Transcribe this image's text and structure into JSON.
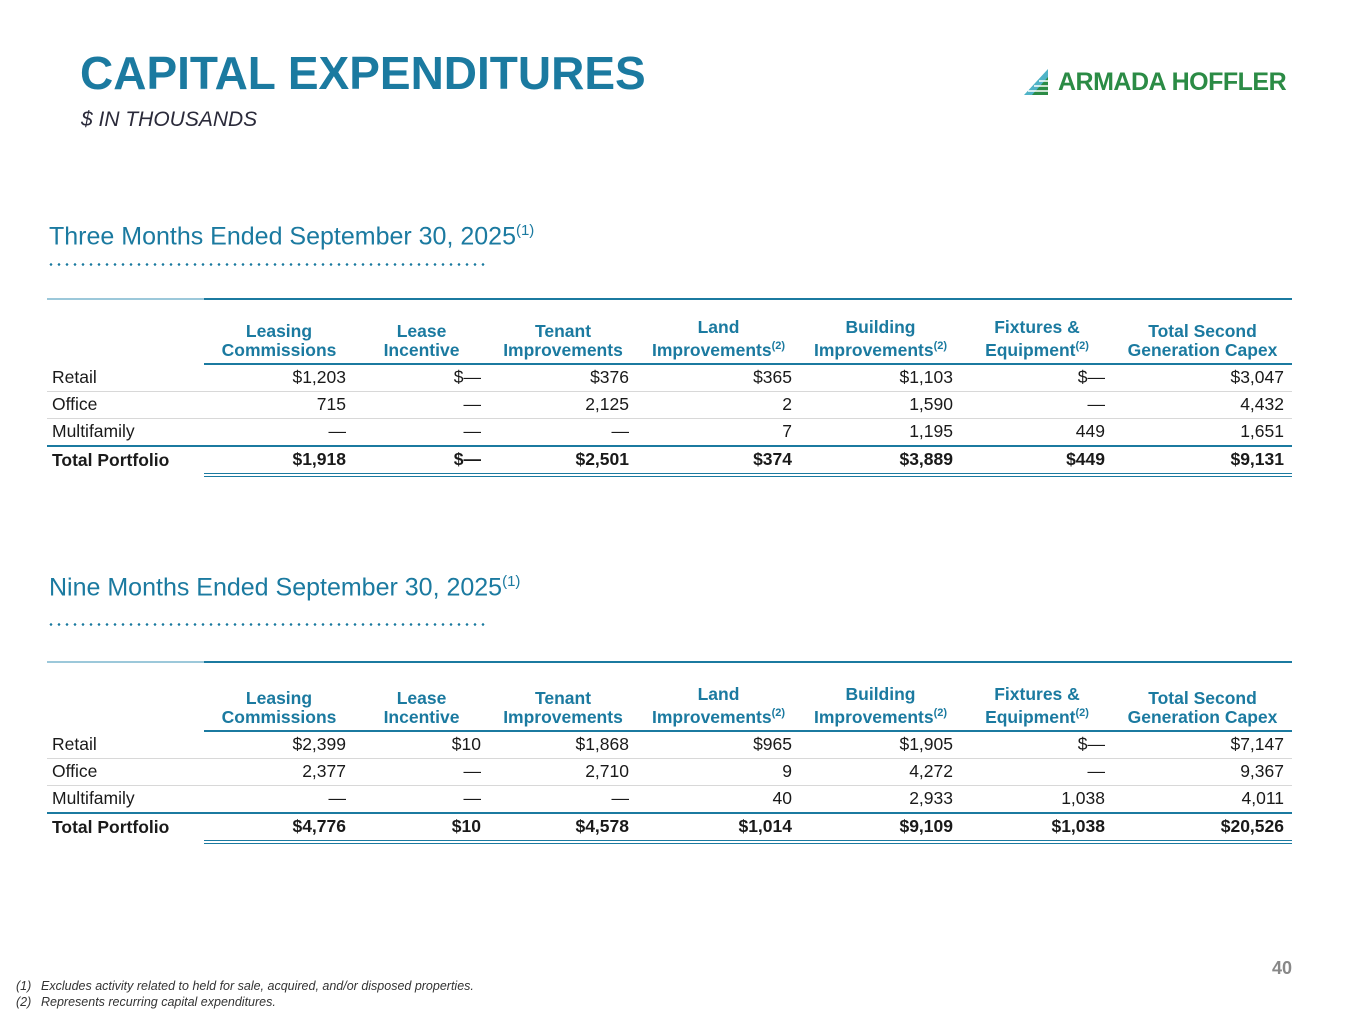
{
  "header": {
    "title": "CAPITAL EXPENDITURES",
    "subtitle": "$ IN THOUSANDS",
    "logo_text": "ARMADA HOFFLER"
  },
  "columns": [
    {
      "line1": "Leasing",
      "line2": "Commissions",
      "sup": ""
    },
    {
      "line1": "Lease",
      "line2": "Incentive",
      "sup": ""
    },
    {
      "line1": "Tenant",
      "line2": "Improvements",
      "sup": ""
    },
    {
      "line1": "Land",
      "line2": "Improvements",
      "sup": "(2)"
    },
    {
      "line1": "Building",
      "line2": "Improvements",
      "sup": "(2)"
    },
    {
      "line1": "Fixtures &",
      "line2": "Equipment",
      "sup": "(2)"
    },
    {
      "line1": "Total Second",
      "line2": "Generation Capex",
      "sup": ""
    }
  ],
  "sections": [
    {
      "title": "Three Months Ended September 30, 2025",
      "title_sup": "(1)",
      "rows": [
        {
          "label": "Retail",
          "values": [
            "$1,203",
            "$—",
            "$376",
            "$365",
            "$1,103",
            "$—",
            "$3,047"
          ]
        },
        {
          "label": "Office",
          "values": [
            "715",
            "—",
            "2,125",
            "2",
            "1,590",
            "—",
            "4,432"
          ]
        },
        {
          "label": "Multifamily",
          "values": [
            "—",
            "—",
            "—",
            "7",
            "1,195",
            "449",
            "1,651"
          ]
        }
      ],
      "total": {
        "label": "Total Portfolio",
        "values": [
          "$1,918",
          "$—",
          "$2,501",
          "$374",
          "$3,889",
          "$449",
          "$9,131"
        ]
      }
    },
    {
      "title": "Nine Months Ended September 30, 2025",
      "title_sup": "(1)",
      "rows": [
        {
          "label": "Retail",
          "values": [
            "$2,399",
            "$10",
            "$1,868",
            "$965",
            "$1,905",
            "$—",
            "$7,147"
          ]
        },
        {
          "label": "Office",
          "values": [
            "2,377",
            "—",
            "2,710",
            "9",
            "4,272",
            "—",
            "9,367"
          ]
        },
        {
          "label": "Multifamily",
          "values": [
            "—",
            "—",
            "—",
            "40",
            "2,933",
            "1,038",
            "4,011"
          ]
        }
      ],
      "total": {
        "label": "Total Portfolio",
        "values": [
          "$4,776",
          "$10",
          "$4,578",
          "$1,014",
          "$9,109",
          "$1,038",
          "$20,526"
        ]
      }
    }
  ],
  "page_number": "40",
  "footnotes": [
    {
      "mark": "(1)",
      "text": "Excludes activity related to held for sale, acquired, and/or disposed properties."
    },
    {
      "mark": "(2)",
      "text": "Represents recurring capital expenditures."
    }
  ]
}
